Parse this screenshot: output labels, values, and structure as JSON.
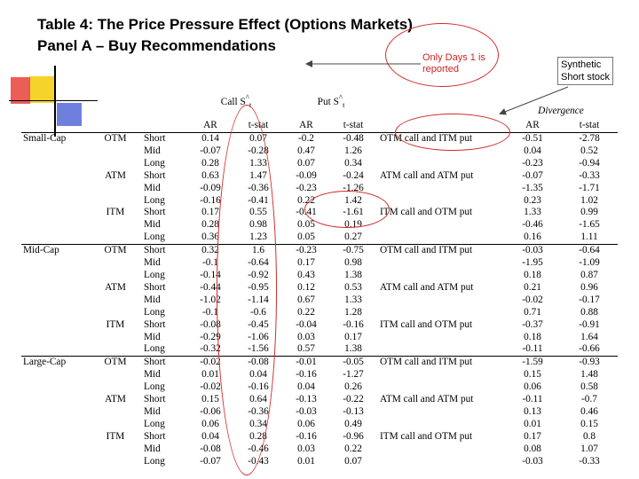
{
  "title_line1": "Table 4: The Price Pressure Effect (Options Markets)",
  "title_line2": "Panel A – Buy Recommendations",
  "annotations": {
    "days_note_line1": "Only Days 1 is",
    "days_note_line2": "reported",
    "synthetic_line1": "Synthetic",
    "synthetic_line2": "Short stock"
  },
  "header": {
    "call_label": "Call S",
    "call_hat": "^",
    "call_sub": "t",
    "put_label": "Put S",
    "put_hat": "^",
    "put_sub": "t",
    "divergence": "Divergence",
    "cols": [
      "AR",
      "t-stat",
      "AR",
      "t-stat",
      "AR",
      "t-stat"
    ]
  },
  "colors": {
    "annotation": "#d12a2a",
    "deco_yellow": "#f6d32a",
    "deco_red": "#e8413a",
    "deco_blue": "#4b5fd6"
  },
  "rows": [
    [
      "Small-Cap",
      "OTM",
      "Short",
      "0.14",
      "0.07",
      "-0.2",
      "-0.48",
      "OTM call and ITM put",
      "-0.51",
      "-2.78"
    ],
    [
      "",
      "",
      "Mid",
      "-0.07",
      "-0.28",
      "0.47",
      "1.26",
      "",
      "0.04",
      "0.52"
    ],
    [
      "",
      "",
      "Long",
      "0.28",
      "1.33",
      "0.07",
      "0.34",
      "",
      "-0.23",
      "-0.94"
    ],
    [
      "",
      "ATM",
      "Short",
      "0.63",
      "1.47",
      "-0.09",
      "-0.24",
      "ATM call and ATM put",
      "-0.07",
      "-0.33"
    ],
    [
      "",
      "",
      "Mid",
      "-0.09",
      "-0.36",
      "-0.23",
      "-1.26",
      "",
      "-1.35",
      "-1.71"
    ],
    [
      "",
      "",
      "Long",
      "-0.16",
      "-0.41",
      "0.22",
      "1.42",
      "",
      "0.23",
      "1.02"
    ],
    [
      "",
      "ITM",
      "Short",
      "0.17",
      "0.55",
      "-0.41",
      "-1.61",
      "ITM call and OTM put",
      "1.33",
      "0.99"
    ],
    [
      "",
      "",
      "Mid",
      "0.28",
      "0.98",
      "0.05",
      "0.19",
      "",
      "-0.46",
      "-1.65"
    ],
    [
      "",
      "",
      "Long",
      "0.36",
      "1.23",
      "0.05",
      "0.27",
      "",
      "0.16",
      "1.11"
    ],
    [
      "Mid-Cap",
      "OTM",
      "Short",
      "0.32",
      "1.6",
      "-0.23",
      "-0.75",
      "OTM call and ITM put",
      "-0.03",
      "-0.64"
    ],
    [
      "",
      "",
      "Mid",
      "-0.1",
      "-0.64",
      "0.17",
      "0.98",
      "",
      "-1.95",
      "-1.09"
    ],
    [
      "",
      "",
      "Long",
      "-0.14",
      "-0.92",
      "0.43",
      "1.38",
      "",
      "0.18",
      "0.87"
    ],
    [
      "",
      "ATM",
      "Short",
      "-0.44",
      "-0.95",
      "0.12",
      "0.53",
      "ATM call and ATM put",
      "0.21",
      "0.96"
    ],
    [
      "",
      "",
      "Mid",
      "-1.02",
      "-1.14",
      "0.67",
      "1.33",
      "",
      "-0.02",
      "-0.17"
    ],
    [
      "",
      "",
      "Long",
      "-0.1",
      "-0.6",
      "0.22",
      "1.28",
      "",
      "0.71",
      "0.88"
    ],
    [
      "",
      "ITM",
      "Short",
      "-0.08",
      "-0.45",
      "-0.04",
      "-0.16",
      "ITM call and OTM put",
      "-0.37",
      "-0.91"
    ],
    [
      "",
      "",
      "Mid",
      "-0.29",
      "-1.06",
      "0.03",
      "0.17",
      "",
      "0.18",
      "1.64"
    ],
    [
      "",
      "",
      "Long",
      "-0.32",
      "-1.56",
      "0.57",
      "1.38",
      "",
      "-0.11",
      "-0.66"
    ],
    [
      "Large-Cap",
      "OTM",
      "Short",
      "-0.02",
      "-0.08",
      "-0.01",
      "-0.05",
      "OTM call and ITM put",
      "-1.59",
      "-0.93"
    ],
    [
      "",
      "",
      "Mid",
      "0.01",
      "0.04",
      "-0.16",
      "-1.27",
      "",
      "0.15",
      "1.48"
    ],
    [
      "",
      "",
      "Long",
      "-0.02",
      "-0.16",
      "0.04",
      "0.26",
      "",
      "0.06",
      "0.58"
    ],
    [
      "",
      "ATM",
      "Short",
      "0.15",
      "0.64",
      "-0.13",
      "-0.22",
      "ATM call and ATM put",
      "-0.11",
      "-0.7"
    ],
    [
      "",
      "",
      "Mid",
      "-0.06",
      "-0.36",
      "-0.03",
      "-0.13",
      "",
      "0.13",
      "0.46"
    ],
    [
      "",
      "",
      "Long",
      "0.06",
      "0.34",
      "0.06",
      "0.49",
      "",
      "0.01",
      "0.15"
    ],
    [
      "",
      "ITM",
      "Short",
      "0.04",
      "0.28",
      "-0.16",
      "-0.96",
      "ITM call and OTM put",
      "0.17",
      "0.8"
    ],
    [
      "",
      "",
      "Mid",
      "-0.08",
      "-0.46",
      "0.03",
      "0.22",
      "",
      "0.08",
      "1.07"
    ],
    [
      "",
      "",
      "Long",
      "-0.07",
      "-0.43",
      "0.01",
      "0.07",
      "",
      "-0.03",
      "-0.33"
    ]
  ]
}
